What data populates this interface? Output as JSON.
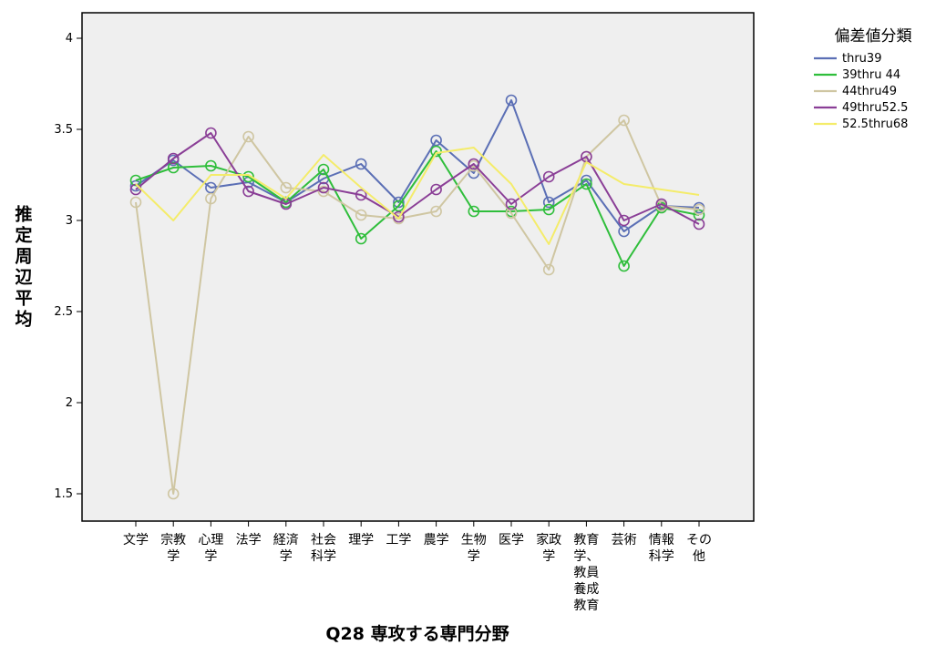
{
  "chart_data": {
    "type": "line",
    "xlabel": "Q28 専攻する専門分野",
    "ylabel": "推定周辺平均",
    "ylim": [
      1.4,
      4.15
    ],
    "yticks": [
      1.5,
      2,
      2.5,
      3,
      3.5,
      4
    ],
    "grid": false,
    "legend": {
      "title": "偏差値分類",
      "placement": "right"
    },
    "categories": [
      [
        "文学"
      ],
      [
        "宗教",
        "学"
      ],
      [
        "心理",
        "学"
      ],
      [
        "法学"
      ],
      [
        "経済",
        "学"
      ],
      [
        "社会",
        "科学"
      ],
      [
        "理学"
      ],
      [
        "工学"
      ],
      [
        "農学"
      ],
      [
        "生物",
        "学"
      ],
      [
        "医学"
      ],
      [
        "家政",
        "学"
      ],
      [
        "教育",
        "学、",
        "教員",
        "養成",
        "教育"
      ],
      [
        "芸術"
      ],
      [
        "情報",
        "科学"
      ],
      [
        "その",
        "他"
      ]
    ],
    "series": [
      {
        "name": "thru39",
        "color": "#5b6fb5",
        "markers": true,
        "values": [
          3.19,
          3.33,
          3.18,
          3.21,
          3.1,
          3.23,
          3.31,
          3.1,
          3.44,
          3.26,
          3.66,
          3.1,
          3.22,
          2.94,
          3.08,
          3.07
        ]
      },
      {
        "name": "39thru 44",
        "color": "#2fbe3b",
        "markers": true,
        "values": [
          3.22,
          3.29,
          3.3,
          3.24,
          3.1,
          3.28,
          2.9,
          3.08,
          3.38,
          3.05,
          3.05,
          3.06,
          3.2,
          2.75,
          3.07,
          3.03
        ]
      },
      {
        "name": "44thru49",
        "color": "#cfc6a2",
        "markers": true,
        "values": [
          3.1,
          1.5,
          3.12,
          3.46,
          3.18,
          3.16,
          3.03,
          3.01,
          3.05,
          3.3,
          3.04,
          2.73,
          3.35,
          3.55,
          3.08,
          3.06
        ]
      },
      {
        "name": "49thru52.5",
        "color": "#8a3e96",
        "markers": true,
        "values": [
          3.17,
          3.34,
          3.48,
          3.16,
          3.09,
          3.18,
          3.14,
          3.02,
          3.17,
          3.31,
          3.09,
          3.24,
          3.35,
          3.0,
          3.09,
          2.98
        ]
      },
      {
        "name": "52.5thru68",
        "color": "#f4ec6a",
        "markers": false,
        "values": [
          3.2,
          3.0,
          3.25,
          3.25,
          3.12,
          3.36,
          3.18,
          3.01,
          3.37,
          3.4,
          3.2,
          2.87,
          3.32,
          3.2,
          3.17,
          3.14
        ]
      }
    ]
  }
}
